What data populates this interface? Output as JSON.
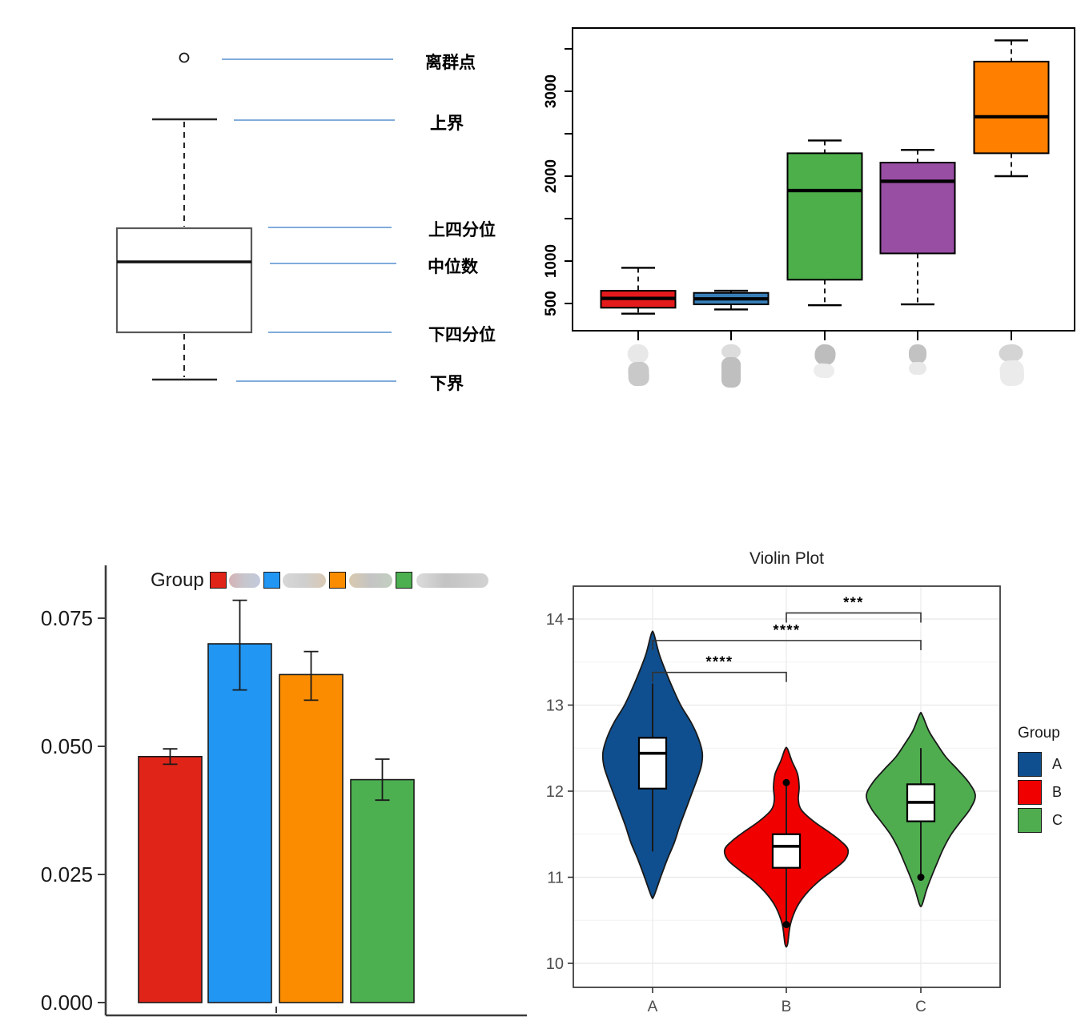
{
  "chart_data": [
    {
      "id": "boxplot-anatomy",
      "type": "diagram",
      "description_labels_language": "zh",
      "labels": [
        {
          "key": "outlier",
          "text": "离群点"
        },
        {
          "key": "upper-bound",
          "text": "上界"
        },
        {
          "key": "upper-quartile",
          "text": "上四分位"
        },
        {
          "key": "median",
          "text": "中位数"
        },
        {
          "key": "lower-quartile",
          "text": "下四分位"
        },
        {
          "key": "lower-bound",
          "text": "下界"
        }
      ],
      "callout_color": "#6FA0D6"
    },
    {
      "id": "grouped-boxplot",
      "type": "boxplot",
      "ylim": [
        250,
        3700
      ],
      "yticks": [
        {
          "v": 500,
          "label": "500"
        },
        {
          "v": 1000,
          "label": "1000"
        },
        {
          "v": 1500,
          "label": ""
        },
        {
          "v": 2000,
          "label": "2000"
        },
        {
          "v": 2500,
          "label": ""
        },
        {
          "v": 3000,
          "label": "3000"
        },
        {
          "v": 3500,
          "label": ""
        }
      ],
      "x_labels_redacted": true,
      "series": [
        {
          "color": "#E41A1C",
          "low": 380,
          "q1": 450,
          "median": 560,
          "q3": 650,
          "high": 920
        },
        {
          "color": "#377EB8",
          "low": 430,
          "q1": 490,
          "median": 555,
          "q3": 625,
          "high": 650
        },
        {
          "color": "#4DAF4A",
          "low": 480,
          "q1": 780,
          "median": 1830,
          "q3": 2270,
          "high": 2420
        },
        {
          "color": "#984EA3",
          "low": 490,
          "q1": 1090,
          "median": 1940,
          "q3": 2160,
          "high": 2310
        },
        {
          "color": "#FF7F00",
          "low": 2000,
          "q1": 2270,
          "median": 2700,
          "q3": 3350,
          "high": 3600
        }
      ]
    },
    {
      "id": "bar-chart",
      "type": "bar",
      "legend_title": "Group",
      "legend_labels_redacted": true,
      "ylim": [
        0,
        0.08
      ],
      "yticks": [
        "0.000",
        "0.025",
        "0.050",
        "0.075"
      ],
      "ytick_step": 0.025,
      "series": [
        {
          "color": "#E02418",
          "value": 0.048,
          "err_low": 0.0465,
          "err_high": 0.0495
        },
        {
          "color": "#2196F3",
          "value": 0.07,
          "err_low": 0.061,
          "err_high": 0.0785
        },
        {
          "color": "#FB8C00",
          "value": 0.064,
          "err_low": 0.059,
          "err_high": 0.0685
        },
        {
          "color": "#4CAF50",
          "value": 0.0435,
          "err_low": 0.0395,
          "err_high": 0.0475
        }
      ]
    },
    {
      "id": "violin-plot",
      "type": "violin",
      "title": "Violin Plot",
      "legend_title": "Group",
      "categories": [
        "A",
        "B",
        "C"
      ],
      "yticks": [
        10,
        11,
        12,
        13,
        14
      ],
      "ylim": [
        9.6,
        14.4
      ],
      "series": [
        {
          "name": "A",
          "color": "#0F4F8F",
          "range": [
            10.78,
            13.83
          ],
          "q1": 12.03,
          "median": 12.44,
          "q3": 12.62,
          "line": [
            11.3,
            13.25
          ],
          "outliers": [],
          "profile": [
            [
              13.83,
              1.5
            ],
            [
              13.6,
              8
            ],
            [
              13.4,
              16
            ],
            [
              13.2,
              25
            ],
            [
              13.0,
              35
            ],
            [
              12.8,
              48
            ],
            [
              12.62,
              57
            ],
            [
              12.45,
              62
            ],
            [
              12.3,
              61
            ],
            [
              12.15,
              56
            ],
            [
              12.0,
              50
            ],
            [
              11.8,
              42
            ],
            [
              11.6,
              34
            ],
            [
              11.4,
              27
            ],
            [
              11.2,
              18
            ],
            [
              11.0,
              10
            ],
            [
              10.78,
              1.5
            ]
          ]
        },
        {
          "name": "B",
          "color": "#F10000",
          "range": [
            10.22,
            12.49
          ],
          "q1": 11.11,
          "median": 11.36,
          "q3": 11.5,
          "line": [
            10.45,
            12.1
          ],
          "outliers": [
            12.1,
            10.45
          ],
          "profile": [
            [
              12.49,
              1.5
            ],
            [
              12.35,
              7
            ],
            [
              12.2,
              14
            ],
            [
              12.05,
              16
            ],
            [
              11.9,
              15
            ],
            [
              11.78,
              19
            ],
            [
              11.65,
              34
            ],
            [
              11.52,
              54
            ],
            [
              11.42,
              68
            ],
            [
              11.32,
              77
            ],
            [
              11.2,
              73
            ],
            [
              11.08,
              58
            ],
            [
              10.95,
              40
            ],
            [
              10.8,
              24
            ],
            [
              10.65,
              13
            ],
            [
              10.45,
              5
            ],
            [
              10.22,
              1.5
            ]
          ]
        },
        {
          "name": "C",
          "color": "#4FAD50",
          "range": [
            10.68,
            12.89
          ],
          "q1": 11.65,
          "median": 11.87,
          "q3": 12.08,
          "line": [
            11.0,
            12.5
          ],
          "outliers": [
            11.0
          ],
          "profile": [
            [
              12.89,
              1.5
            ],
            [
              12.7,
              10
            ],
            [
              12.55,
              20
            ],
            [
              12.4,
              31
            ],
            [
              12.25,
              46
            ],
            [
              12.1,
              60
            ],
            [
              11.95,
              68
            ],
            [
              11.8,
              62
            ],
            [
              11.65,
              50
            ],
            [
              11.5,
              38
            ],
            [
              11.33,
              28
            ],
            [
              11.18,
              21
            ],
            [
              11.0,
              13
            ],
            [
              10.85,
              7
            ],
            [
              10.68,
              1.5
            ]
          ]
        }
      ],
      "significance": [
        {
          "pair": [
            0,
            1
          ],
          "label": "****",
          "height": 13.38
        },
        {
          "pair": [
            0,
            2
          ],
          "label": "****",
          "height": 13.75
        },
        {
          "pair": [
            1,
            2
          ],
          "label": "***",
          "height": 14.07
        }
      ]
    }
  ]
}
